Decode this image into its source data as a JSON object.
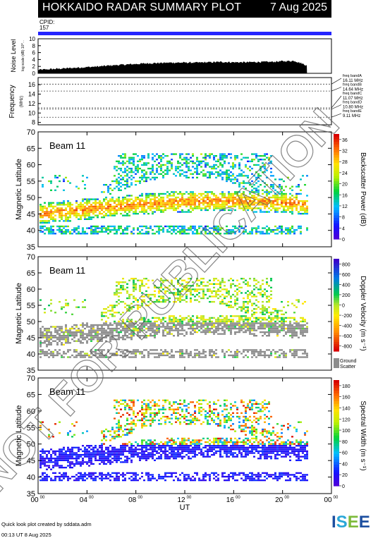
{
  "header": {
    "title": "HOKKAIDO RADAR SUMMARY PLOT",
    "date": "7 Aug 2025"
  },
  "cpid": {
    "label": "CPID:",
    "value": "157"
  },
  "footer": {
    "line1": "Quick look plot created by sddata.adm",
    "line2": "00:13 UT  8 Aug 2025"
  },
  "logo": {
    "text": "ISEE",
    "colors": [
      "#1d4fa0",
      "#2aa7d8",
      "#7dbb3c",
      "#1d4fa0"
    ]
  },
  "watermark": "NOT FOR PUBLICATION",
  "chart_data": [
    {
      "type": "area",
      "name": "noise",
      "ylabel": "Noise Level",
      "ylabel_sub": "log scale (dB) 10^...",
      "yticks": [
        "0",
        "2",
        "4",
        "6",
        "8",
        "10"
      ],
      "ylim": [
        0,
        10
      ],
      "x": [
        0,
        1,
        2,
        3,
        4,
        5,
        6,
        7,
        8,
        9,
        10,
        11,
        12,
        13,
        14,
        15,
        16,
        17,
        18,
        19,
        20,
        21,
        22
      ],
      "values": [
        1.0,
        1.2,
        1.4,
        1.6,
        1.8,
        2.0,
        2.3,
        2.5,
        2.7,
        2.9,
        3.0,
        3.1,
        3.1,
        3.1,
        3.2,
        3.3,
        3.2,
        3.2,
        3.3,
        3.3,
        3.5,
        3.6,
        2.3
      ]
    },
    {
      "type": "line",
      "name": "frequency",
      "ylabel": "Frequency",
      "ylabel_sub": "(MHz)",
      "yticks": [
        "8",
        "10",
        "12",
        "14",
        "16"
      ],
      "ylim": [
        7.5,
        17.5
      ],
      "bands": [
        {
          "label": "freq bandA",
          "freq": "16.11 MHz",
          "value": 16.11
        },
        {
          "label": "freq bandB",
          "freq": "14.64 MHz",
          "value": 14.64
        },
        {
          "label": "freq bandC",
          "freq": "11.07 MHz",
          "value": 11.07
        },
        {
          "label": "freq bandD",
          "freq": "10.80 MHz",
          "value": 10.8
        },
        {
          "label": "freq bandE",
          "freq": "9.11 MHz",
          "value": 9.11
        }
      ]
    },
    {
      "type": "heatmap",
      "name": "power",
      "beam": "Beam 11",
      "ylabel": "Magnetic Latitude",
      "yticks": [
        "35",
        "40",
        "45",
        "50",
        "55",
        "60",
        "65",
        "70"
      ],
      "ylim": [
        35,
        70
      ],
      "cbar_label": "Backscatter Power (dB)",
      "cbar_ticks": [
        "0",
        "4",
        "8",
        "12",
        "16",
        "20",
        "24",
        "28",
        "32",
        "36"
      ],
      "cbar_range": [
        0,
        38
      ]
    },
    {
      "type": "heatmap",
      "name": "velocity",
      "beam": "Beam 11",
      "ylabel": "Magnetic Latitude",
      "yticks": [
        "35",
        "40",
        "45",
        "50",
        "55",
        "60",
        "65",
        "70"
      ],
      "ylim": [
        35,
        70
      ],
      "cbar_label": "Doppler Velocity (m s⁻¹)",
      "cbar_ticks": [
        "-800",
        "-600",
        "-400",
        "-200",
        "0",
        "200",
        "400",
        "600",
        "800"
      ],
      "cbar_range": [
        -900,
        900
      ],
      "ground_label": "Ground",
      "ground_label2": "Scatter"
    },
    {
      "type": "heatmap",
      "name": "width",
      "beam": "Beam 11",
      "ylabel": "Magnetic Latitude",
      "yticks": [
        "35",
        "40",
        "45",
        "50",
        "55",
        "60",
        "65",
        "70"
      ],
      "ylim": [
        35,
        70
      ],
      "cbar_label": "Spectral Width (m s⁻¹)",
      "cbar_ticks": [
        "0",
        "20",
        "40",
        "60",
        "80",
        "100",
        "120",
        "140",
        "160",
        "180"
      ],
      "cbar_range": [
        0,
        190
      ]
    }
  ],
  "xaxis": {
    "label": "UT",
    "ticks": [
      "00",
      "04",
      "08",
      "12",
      "16",
      "20",
      "00"
    ],
    "tick_sup": "00",
    "range_hours": [
      0,
      24
    ],
    "data_end_hour": 22
  }
}
